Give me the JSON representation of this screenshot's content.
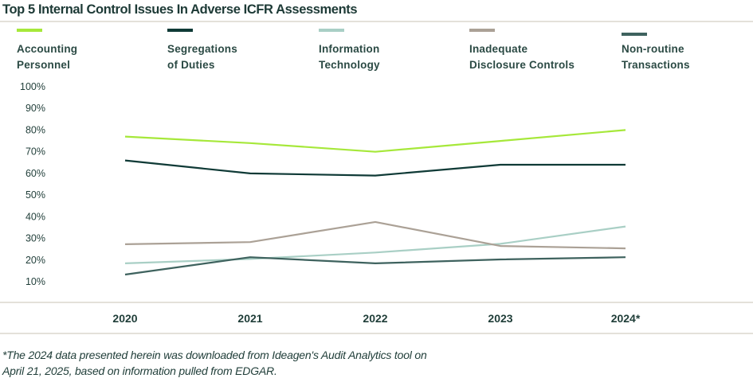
{
  "chart_data": {
    "type": "line",
    "title": "Top 5 Internal Control Issues In Adverse ICFR Assessments",
    "categories": [
      "2020",
      "2021",
      "2022",
      "2023",
      "2024*"
    ],
    "y_ticks": [
      "100%",
      "90%",
      "80%",
      "70%",
      "60%",
      "50%",
      "40%",
      "30%",
      "20%",
      "10%"
    ],
    "ylim": [
      10,
      100
    ],
    "grid": false,
    "legend_position": "top",
    "series": [
      {
        "name": "Accounting\nPersonnel",
        "color": "#a6e83a",
        "values": [
          77,
          74,
          70,
          75,
          80
        ]
      },
      {
        "name": "Segregations\nof Duties",
        "color": "#0f3a36",
        "values": [
          66,
          60,
          59,
          64,
          64
        ]
      },
      {
        "name": "Information\nTechnology",
        "color": "#a9cfc5",
        "values": [
          18.5,
          20.5,
          23.5,
          27.5,
          35.5
        ]
      },
      {
        "name": "Inadequate\nDisclosure Controls",
        "color": "#aba196",
        "values": [
          27.3,
          28.3,
          37.6,
          26.5,
          25.4
        ]
      },
      {
        "name": "Non-routine\nTransactions",
        "color": "#3e625e",
        "values": [
          13.3,
          21.3,
          18.5,
          20.3,
          21.3
        ]
      }
    ],
    "footnote": "*The 2024 data presented herein was downloaded from Ideagen's Audit Analytics tool on\nApril 21, 2025, based on information pulled from EDGAR."
  }
}
